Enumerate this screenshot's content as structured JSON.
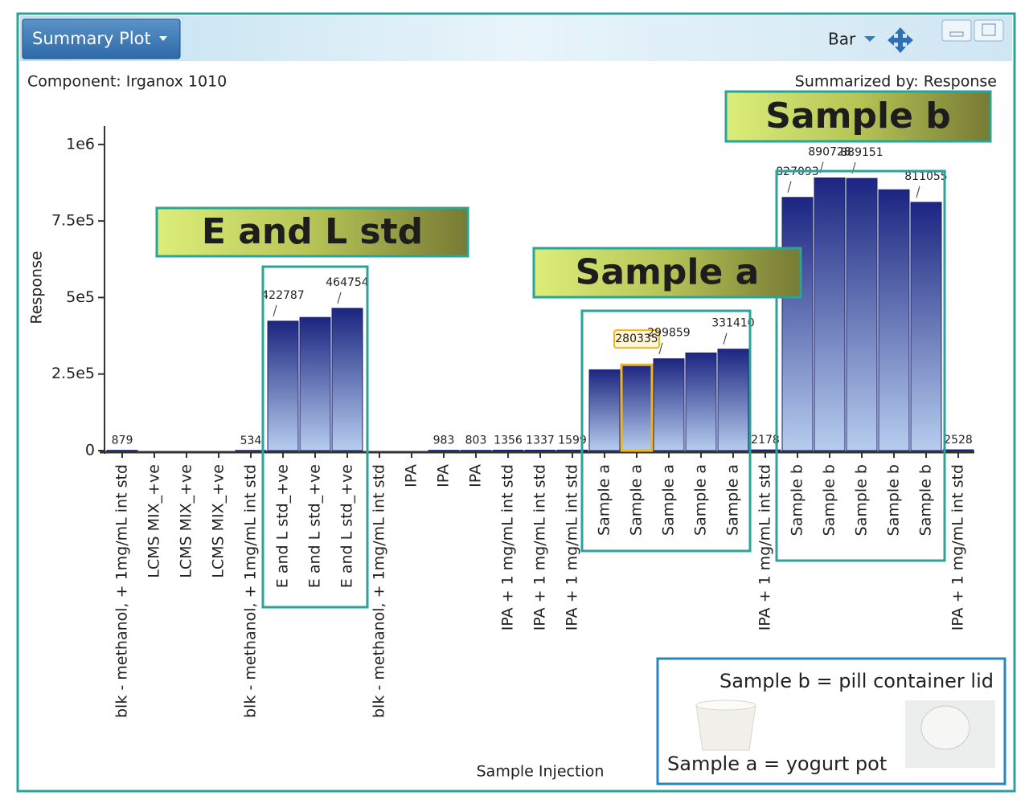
{
  "window": {
    "title": "Summary Plot",
    "view": "Bar"
  },
  "component": "Component: Irganox 1010",
  "summarized_by": "Summarized by: Response",
  "chart_data": {
    "type": "bar",
    "x_label": "Sample Injection",
    "y_label": "Response",
    "categories": [
      "blk - methanol, + 1mg/mL int std",
      "LCMS MIX_+ve",
      "LCMS MIX_+ve",
      "LCMS MIX_+ve",
      "blk - methanol, + 1mg/mL int std",
      "E and L std_+ve",
      "E and L std_+ve",
      "E and L std_+ve",
      "blk - methanol, + 1mg/mL int std",
      "IPA",
      "IPA",
      "IPA",
      "IPA + 1 mg/mL int std",
      "IPA + 1 mg/mL int std",
      "IPA + 1 mg/mL int std",
      "Sample a",
      "Sample a",
      "Sample a",
      "Sample a",
      "Sample a",
      "IPA + 1 mg/mL int std",
      "Sample b",
      "Sample b",
      "Sample b",
      "Sample b",
      "Sample b",
      "IPA + 1 mg/mL int std"
    ],
    "values": [
      879,
      null,
      null,
      null,
      534,
      422787,
      435000,
      464754,
      null,
      null,
      983,
      803,
      1356,
      1337,
      1599,
      264000,
      280335,
      299859,
      319000,
      331410,
      2178,
      827093,
      890728,
      889151,
      852000,
      811055,
      2528
    ],
    "value_labels": [
      "879",
      null,
      null,
      null,
      "534",
      "422787",
      null,
      "464754",
      null,
      null,
      "983",
      "803",
      "1356",
      "1337",
      "1599",
      null,
      "280335",
      "299859",
      null,
      "331410",
      "2178",
      "827093",
      "890728",
      "889151",
      null,
      "811055",
      "2528"
    ],
    "selected_index": 16,
    "color_top": "#1c2580",
    "color_bottom": "#b6cdee",
    "ylim": [
      0,
      1060000
    ],
    "yticks": [
      0,
      {
        "value": 250000,
        "label": "2.5e5"
      },
      {
        "value": 500000,
        "label": "5e5"
      },
      {
        "value": 750000,
        "label": "7.5e5"
      },
      {
        "value": 1000000,
        "label": "1e6"
      }
    ],
    "annotations": [
      "E and L std",
      "Sample a",
      "Sample b"
    ],
    "notes": [
      "Sample b = pill container lid",
      "Sample a = yogurt pot"
    ]
  }
}
